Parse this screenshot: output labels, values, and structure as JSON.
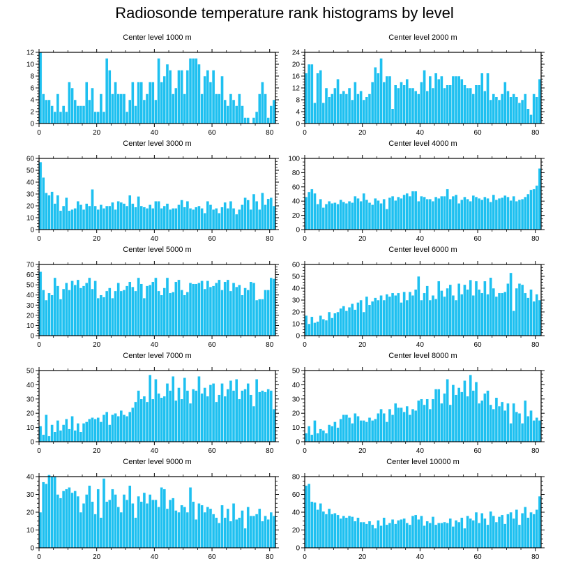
{
  "title": "Radiosonde temperature rank histograms by level",
  "chart_data": [
    {
      "type": "bar",
      "title": "Center level 1000 m",
      "xlabel": "",
      "ylabel": "",
      "xlim": [
        0,
        82
      ],
      "ylim": [
        0,
        12
      ],
      "yticks": [
        0,
        2,
        4,
        6,
        8,
        10,
        12
      ],
      "xticks": [
        0,
        20,
        40,
        60,
        80
      ],
      "values": [
        12,
        5,
        4,
        4,
        3,
        2,
        5,
        2,
        3,
        2,
        7,
        6,
        4,
        3,
        3,
        3,
        7,
        4,
        6,
        2,
        2,
        5,
        2,
        11,
        9,
        5,
        7,
        5,
        5,
        5,
        2,
        4,
        7,
        3,
        7,
        7,
        4,
        5,
        7,
        7,
        4,
        11,
        7,
        8,
        10,
        9,
        5,
        6,
        9,
        9,
        5,
        9,
        11,
        11,
        11,
        10,
        5,
        8,
        9,
        7,
        9,
        5,
        5,
        8,
        4,
        3,
        5,
        4,
        3,
        5,
        3,
        1,
        1,
        0,
        1,
        2,
        5,
        7,
        5,
        1,
        3,
        4
      ]
    },
    {
      "type": "bar",
      "title": "Center level 2000 m",
      "xlabel": "",
      "ylabel": "",
      "xlim": [
        0,
        82
      ],
      "ylim": [
        0,
        24
      ],
      "yticks": [
        0,
        4,
        8,
        12,
        16,
        20,
        24
      ],
      "xticks": [
        0,
        20,
        40,
        60,
        80
      ],
      "values": [
        17,
        20,
        20,
        7,
        17,
        18,
        7,
        12,
        9,
        10,
        12,
        15,
        10,
        11,
        10,
        12,
        8,
        14,
        10,
        11,
        8,
        9,
        10,
        14,
        19,
        17,
        22,
        14,
        16,
        16,
        5,
        13,
        12,
        14,
        13,
        15,
        12,
        12,
        11,
        10,
        14,
        18,
        11,
        16,
        12,
        17,
        15,
        16,
        12,
        13,
        13,
        16,
        16,
        16,
        15,
        13,
        12,
        12,
        10,
        13,
        13,
        17,
        11,
        17,
        8,
        10,
        9,
        8,
        10,
        14,
        11,
        9,
        10,
        9,
        7,
        8,
        10,
        5,
        3,
        10,
        9,
        15
      ]
    },
    {
      "type": "bar",
      "title": "Center level 3000 m",
      "xlabel": "",
      "ylabel": "",
      "xlim": [
        0,
        82
      ],
      "ylim": [
        0,
        60
      ],
      "yticks": [
        0,
        10,
        20,
        30,
        40,
        50,
        60
      ],
      "xticks": [
        0,
        20,
        40,
        60,
        80
      ],
      "values": [
        57,
        44,
        31,
        29,
        32,
        22,
        29,
        16,
        20,
        27,
        16,
        17,
        18,
        24,
        21,
        17,
        22,
        20,
        34,
        20,
        17,
        21,
        18,
        20,
        20,
        23,
        17,
        24,
        23,
        22,
        20,
        29,
        22,
        19,
        28,
        20,
        19,
        18,
        21,
        18,
        24,
        24,
        18,
        20,
        22,
        17,
        18,
        18,
        21,
        25,
        19,
        24,
        18,
        17,
        19,
        20,
        18,
        14,
        24,
        21,
        17,
        18,
        14,
        19,
        23,
        18,
        24,
        18,
        13,
        17,
        21,
        27,
        25,
        17,
        30,
        24,
        17,
        31,
        21,
        26,
        27,
        20
      ]
    },
    {
      "type": "bar",
      "title": "Center level 4000 m",
      "xlabel": "",
      "ylabel": "",
      "xlim": [
        0,
        82
      ],
      "ylim": [
        0,
        100
      ],
      "yticks": [
        0,
        20,
        40,
        60,
        80,
        100
      ],
      "xticks": [
        0,
        20,
        40,
        60,
        80
      ],
      "values": [
        46,
        53,
        57,
        51,
        36,
        43,
        31,
        36,
        40,
        37,
        38,
        36,
        42,
        39,
        37,
        40,
        38,
        47,
        44,
        40,
        51,
        42,
        38,
        35,
        44,
        41,
        37,
        43,
        29,
        45,
        47,
        41,
        46,
        44,
        49,
        51,
        47,
        54,
        54,
        40,
        47,
        46,
        43,
        43,
        40,
        46,
        44,
        47,
        47,
        57,
        43,
        47,
        49,
        37,
        42,
        46,
        43,
        40,
        48,
        46,
        44,
        42,
        46,
        44,
        39,
        49,
        42,
        44,
        45,
        48,
        46,
        41,
        47,
        40,
        42,
        43,
        46,
        50,
        56,
        57,
        62,
        86
      ]
    },
    {
      "type": "bar",
      "title": "Center level 5000 m",
      "xlabel": "",
      "ylabel": "",
      "xlim": [
        0,
        82
      ],
      "ylim": [
        0,
        70
      ],
      "yticks": [
        0,
        10,
        20,
        30,
        40,
        50,
        60,
        70
      ],
      "xticks": [
        0,
        20,
        40,
        60,
        80
      ],
      "values": [
        63,
        45,
        35,
        42,
        40,
        57,
        49,
        36,
        46,
        52,
        45,
        54,
        50,
        55,
        47,
        49,
        52,
        57,
        46,
        54,
        37,
        40,
        38,
        44,
        47,
        37,
        44,
        52,
        44,
        45,
        49,
        53,
        48,
        44,
        57,
        51,
        37,
        49,
        50,
        53,
        57,
        44,
        40,
        47,
        57,
        42,
        43,
        53,
        55,
        45,
        40,
        43,
        52,
        51,
        51,
        52,
        54,
        46,
        54,
        48,
        49,
        52,
        55,
        45,
        53,
        55,
        44,
        52,
        48,
        50,
        40,
        47,
        45,
        53,
        52,
        35,
        36,
        36,
        45,
        45,
        57,
        56
      ]
    },
    {
      "type": "bar",
      "title": "Center level 6000 m",
      "xlabel": "",
      "ylabel": "",
      "xlim": [
        0,
        82
      ],
      "ylim": [
        0,
        60
      ],
      "yticks": [
        0,
        10,
        20,
        30,
        40,
        50,
        60
      ],
      "xticks": [
        0,
        20,
        40,
        60,
        80
      ],
      "values": [
        17,
        10,
        16,
        11,
        12,
        17,
        14,
        13,
        20,
        15,
        19,
        20,
        23,
        25,
        21,
        24,
        27,
        22,
        28,
        30,
        20,
        33,
        26,
        29,
        32,
        30,
        34,
        30,
        35,
        33,
        36,
        34,
        36,
        28,
        37,
        30,
        37,
        34,
        39,
        50,
        30,
        36,
        42,
        30,
        34,
        31,
        46,
        38,
        33,
        40,
        43,
        34,
        30,
        44,
        35,
        43,
        39,
        47,
        34,
        46,
        39,
        36,
        46,
        35,
        49,
        40,
        33,
        36,
        36,
        37,
        44,
        53,
        21,
        40,
        44,
        43,
        36,
        32,
        39,
        29,
        35,
        30
      ]
    },
    {
      "type": "bar",
      "title": "Center level 7000 m",
      "xlabel": "",
      "ylabel": "",
      "xlim": [
        0,
        82
      ],
      "ylim": [
        0,
        50
      ],
      "yticks": [
        0,
        10,
        20,
        30,
        40,
        50
      ],
      "xticks": [
        0,
        20,
        40,
        60,
        80
      ],
      "values": [
        11,
        5,
        19,
        4,
        12,
        7,
        15,
        8,
        12,
        16,
        9,
        18,
        8,
        13,
        7,
        13,
        14,
        16,
        17,
        16,
        17,
        14,
        19,
        21,
        12,
        19,
        20,
        18,
        22,
        19,
        18,
        21,
        24,
        28,
        36,
        30,
        32,
        28,
        47,
        30,
        44,
        34,
        31,
        32,
        41,
        36,
        46,
        29,
        38,
        30,
        45,
        36,
        27,
        37,
        36,
        46,
        34,
        38,
        32,
        40,
        41,
        28,
        33,
        41,
        32,
        37,
        43,
        36,
        44,
        30,
        36,
        37,
        41,
        33,
        25,
        44,
        35,
        36,
        35,
        37,
        36,
        23
      ]
    },
    {
      "type": "bar",
      "title": "Center level 8000 m",
      "xlabel": "",
      "ylabel": "",
      "xlim": [
        0,
        82
      ],
      "ylim": [
        0,
        50
      ],
      "yticks": [
        0,
        10,
        20,
        30,
        40,
        50
      ],
      "xticks": [
        0,
        20,
        40,
        60,
        80
      ],
      "values": [
        6,
        11,
        5,
        15,
        6,
        9,
        8,
        6,
        12,
        11,
        14,
        10,
        16,
        19,
        19,
        17,
        13,
        20,
        18,
        15,
        15,
        14,
        17,
        15,
        16,
        20,
        23,
        20,
        14,
        23,
        19,
        27,
        24,
        24,
        21,
        25,
        19,
        23,
        22,
        29,
        30,
        26,
        30,
        23,
        30,
        37,
        37,
        27,
        34,
        44,
        26,
        40,
        33,
        38,
        35,
        43,
        32,
        47,
        36,
        42,
        27,
        29,
        34,
        36,
        26,
        23,
        31,
        25,
        28,
        22,
        27,
        13,
        27,
        21,
        20,
        13,
        29,
        18,
        22,
        15,
        17,
        15
      ]
    },
    {
      "type": "bar",
      "title": "Center level 9000 m",
      "xlabel": "",
      "ylabel": "",
      "xlim": [
        0,
        82
      ],
      "ylim": [
        0,
        40
      ],
      "yticks": [
        0,
        10,
        20,
        30,
        40
      ],
      "xticks": [
        0,
        20,
        40,
        60,
        80
      ],
      "values": [
        20,
        37,
        36,
        41,
        40,
        40,
        30,
        28,
        32,
        33,
        34,
        31,
        32,
        29,
        20,
        25,
        30,
        35,
        26,
        19,
        33,
        17,
        39,
        26,
        27,
        33,
        30,
        23,
        20,
        30,
        27,
        35,
        25,
        17,
        29,
        26,
        31,
        25,
        30,
        27,
        27,
        23,
        34,
        33,
        22,
        27,
        28,
        21,
        20,
        24,
        23,
        20,
        34,
        26,
        16,
        25,
        24,
        20,
        23,
        22,
        19,
        17,
        14,
        24,
        17,
        22,
        15,
        25,
        16,
        17,
        21,
        11,
        23,
        18,
        18,
        19,
        22,
        15,
        18,
        16,
        20,
        18
      ]
    },
    {
      "type": "bar",
      "title": "Center level 10000 m",
      "xlabel": "",
      "ylabel": "",
      "xlim": [
        0,
        82
      ],
      "ylim": [
        0,
        80
      ],
      "yticks": [
        0,
        20,
        40,
        60,
        80
      ],
      "xticks": [
        0,
        20,
        40,
        60,
        80
      ],
      "values": [
        70,
        72,
        52,
        51,
        43,
        50,
        41,
        38,
        44,
        38,
        39,
        37,
        33,
        36,
        34,
        36,
        35,
        30,
        34,
        29,
        29,
        27,
        30,
        26,
        22,
        31,
        25,
        34,
        26,
        28,
        32,
        27,
        31,
        32,
        33,
        28,
        26,
        36,
        37,
        32,
        36,
        25,
        30,
        28,
        35,
        26,
        28,
        28,
        29,
        28,
        33,
        24,
        31,
        29,
        34,
        22,
        36,
        33,
        31,
        40,
        28,
        39,
        33,
        26,
        41,
        36,
        29,
        35,
        37,
        27,
        38,
        40,
        33,
        43,
        26,
        39,
        46,
        34,
        40,
        38,
        43,
        58
      ]
    }
  ]
}
